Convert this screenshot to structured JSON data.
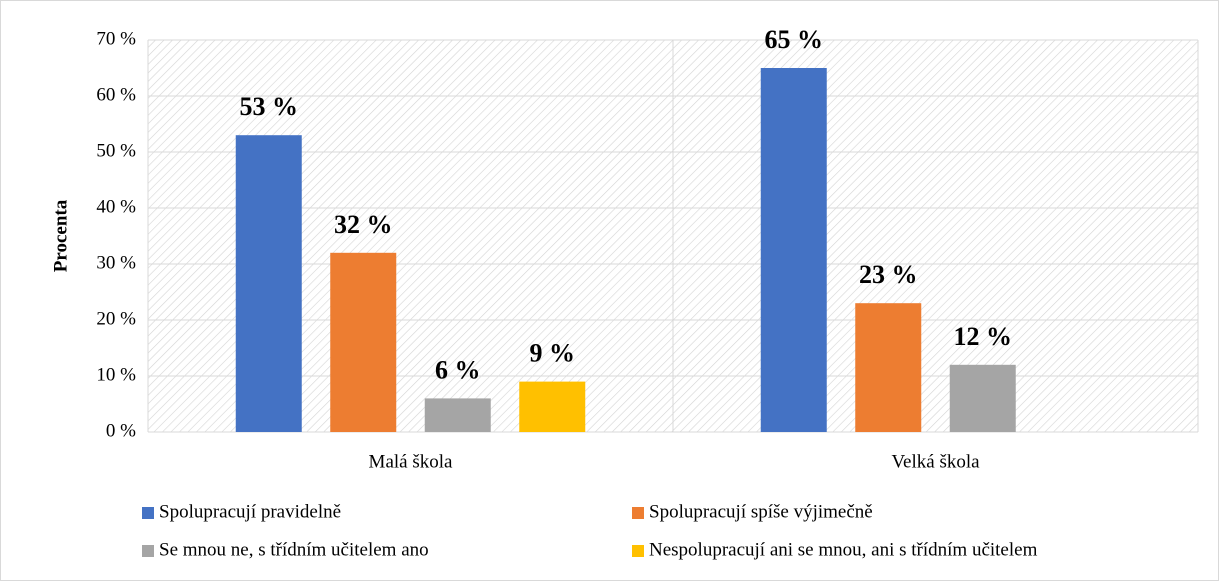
{
  "chart_data": {
    "type": "bar",
    "y_label": "Procenta",
    "categories": [
      "Malá škola",
      "Velká škola"
    ],
    "series": [
      {
        "name": "Spolupracují pravidelně",
        "color": "#4472c4",
        "values": [
          53,
          65
        ],
        "value_labels": [
          "53 %",
          "65 %"
        ]
      },
      {
        "name": "Spolupracují spíše výjimečně",
        "color": "#ed7d31",
        "values": [
          32,
          23
        ],
        "value_labels": [
          "32 %",
          "23 %"
        ]
      },
      {
        "name": "Se mnou ne, s třídním učitelem ano",
        "color": "#a5a5a5",
        "values": [
          6,
          12
        ],
        "value_labels": [
          "6 %",
          "12 %"
        ]
      },
      {
        "name": "Nespolupracují ani se mnou, ani s třídním učitelem",
        "color": "#ffc000",
        "values": [
          9,
          null
        ],
        "value_labels": [
          "9 %",
          null
        ]
      }
    ],
    "ylim": [
      0,
      70
    ],
    "yticks": [
      {
        "value": 0,
        "label": "0 %"
      },
      {
        "value": 10,
        "label": "10 %"
      },
      {
        "value": 20,
        "label": "20 %"
      },
      {
        "value": 30,
        "label": "30 %"
      },
      {
        "value": 40,
        "label": "40 %"
      },
      {
        "value": 50,
        "label": "50 %"
      },
      {
        "value": 60,
        "label": "60 %"
      },
      {
        "value": 70,
        "label": "70 %"
      }
    ],
    "grid": true,
    "legend": "bottom"
  }
}
